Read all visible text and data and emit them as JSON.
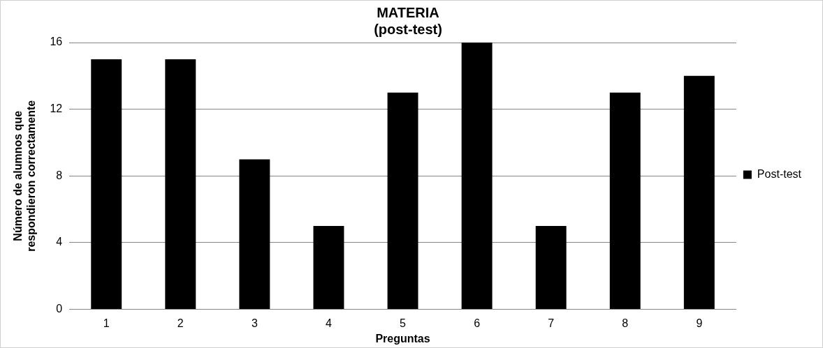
{
  "chart_data": {
    "type": "bar",
    "title": "MATERIA",
    "subtitle": "(post-test)",
    "xlabel": "Preguntas",
    "ylabel": "Número de alumnos que\nrespondieron correctamente",
    "categories": [
      "1",
      "2",
      "3",
      "4",
      "5",
      "6",
      "7",
      "8",
      "9"
    ],
    "series": [
      {
        "name": "Post-test",
        "color": "#000000",
        "values": [
          15,
          15,
          9,
          5,
          13,
          16,
          5,
          13,
          14
        ]
      }
    ],
    "ylim": [
      0,
      16
    ],
    "yticks": [
      0,
      4,
      8,
      12,
      16
    ],
    "grid": "y",
    "legend": "right"
  }
}
